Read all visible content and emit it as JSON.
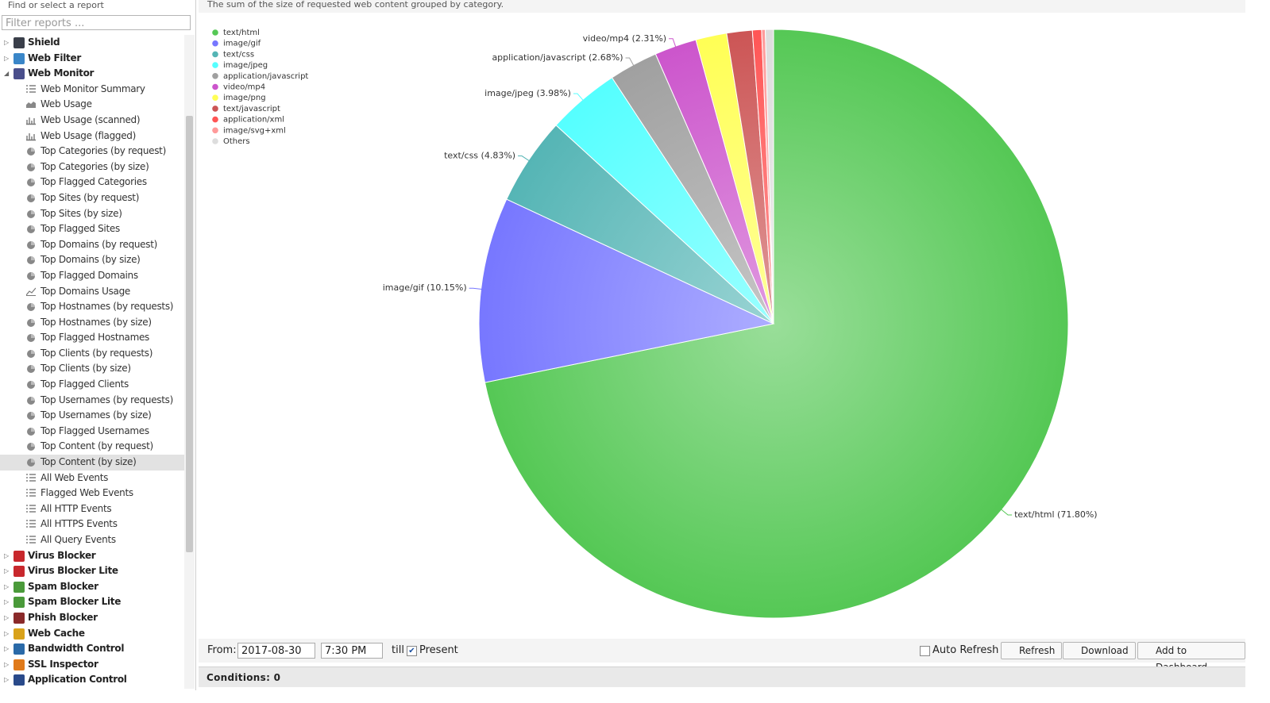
{
  "sidebar": {
    "title": "Find or select a report",
    "filter_placeholder": "Filter reports ...",
    "tree": [
      {
        "label": "Shield",
        "color": "#3a3f4a",
        "expanded": false
      },
      {
        "label": "Web Filter",
        "color": "#3a86c8",
        "expanded": false
      },
      {
        "label": "Web Monitor",
        "color": "#4a4f8c",
        "expanded": true,
        "children": [
          {
            "label": "Web Monitor Summary",
            "icon": "list"
          },
          {
            "label": "Web Usage",
            "icon": "area"
          },
          {
            "label": "Web Usage (scanned)",
            "icon": "bar"
          },
          {
            "label": "Web Usage (flagged)",
            "icon": "bar"
          },
          {
            "label": "Top Categories (by request)",
            "icon": "pie"
          },
          {
            "label": "Top Categories (by size)",
            "icon": "pie"
          },
          {
            "label": "Top Flagged Categories",
            "icon": "pie"
          },
          {
            "label": "Top Sites (by request)",
            "icon": "pie"
          },
          {
            "label": "Top Sites (by size)",
            "icon": "pie"
          },
          {
            "label": "Top Flagged Sites",
            "icon": "pie"
          },
          {
            "label": "Top Domains (by request)",
            "icon": "pie"
          },
          {
            "label": "Top Domains (by size)",
            "icon": "pie"
          },
          {
            "label": "Top Flagged Domains",
            "icon": "pie"
          },
          {
            "label": "Top Domains Usage",
            "icon": "line"
          },
          {
            "label": "Top Hostnames (by requests)",
            "icon": "pie"
          },
          {
            "label": "Top Hostnames (by size)",
            "icon": "pie"
          },
          {
            "label": "Top Flagged Hostnames",
            "icon": "pie"
          },
          {
            "label": "Top Clients (by requests)",
            "icon": "pie"
          },
          {
            "label": "Top Clients (by size)",
            "icon": "pie"
          },
          {
            "label": "Top Flagged Clients",
            "icon": "pie"
          },
          {
            "label": "Top Usernames (by requests)",
            "icon": "pie"
          },
          {
            "label": "Top Usernames (by size)",
            "icon": "pie"
          },
          {
            "label": "Top Flagged Usernames",
            "icon": "pie"
          },
          {
            "label": "Top Content (by request)",
            "icon": "pie"
          },
          {
            "label": "Top Content (by size)",
            "icon": "pie",
            "selected": true
          },
          {
            "label": "All Web Events",
            "icon": "list"
          },
          {
            "label": "Flagged Web Events",
            "icon": "list"
          },
          {
            "label": "All HTTP Events",
            "icon": "list"
          },
          {
            "label": "All HTTPS Events",
            "icon": "list"
          },
          {
            "label": "All Query Events",
            "icon": "list"
          }
        ]
      },
      {
        "label": "Virus Blocker",
        "color": "#c8282d",
        "expanded": false
      },
      {
        "label": "Virus Blocker Lite",
        "color": "#c8282d",
        "expanded": false
      },
      {
        "label": "Spam Blocker",
        "color": "#4a9a3a",
        "expanded": false
      },
      {
        "label": "Spam Blocker Lite",
        "color": "#4a9a3a",
        "expanded": false
      },
      {
        "label": "Phish Blocker",
        "color": "#8a2a2a",
        "expanded": false
      },
      {
        "label": "Web Cache",
        "color": "#d9a21a",
        "expanded": false
      },
      {
        "label": "Bandwidth Control",
        "color": "#2a6aa8",
        "expanded": false
      },
      {
        "label": "SSL Inspector",
        "color": "#e07a1a",
        "expanded": false
      },
      {
        "label": "Application Control",
        "color": "#2a4a8a",
        "expanded": false
      }
    ]
  },
  "chart_data": {
    "type": "pie",
    "subtitle": "The sum of the size of requested web content grouped by category.",
    "categories": [
      "text/html",
      "image/gif",
      "text/css",
      "image/jpeg",
      "application/javascript",
      "video/mp4",
      "image/png",
      "text/javascript",
      "application/xml",
      "image/svg+xml",
      "Others"
    ],
    "values": [
      71.8,
      10.15,
      4.83,
      3.98,
      2.68,
      2.31,
      1.7,
      1.4,
      0.5,
      0.2,
      0.45
    ],
    "value_labels": [
      "text/html (71.80%)",
      "image/gif (10.15%)",
      "text/css (4.83%)",
      "image/jpeg (3.98%)",
      "application/javascript (2.68%)",
      "video/mp4 (2.31%)",
      null,
      null,
      null,
      null,
      null
    ],
    "colors": [
      "#55c855",
      "#7777ff",
      "#55b5b5",
      "#55ffff",
      "#a0a0a0",
      "#cc55cc",
      "#ffff55",
      "#cc5555",
      "#ff5555",
      "#ff9a9a",
      "#dddddd"
    ],
    "legend": "top-left"
  },
  "toolbar": {
    "from_label": "From:",
    "date": "2017-08-30",
    "time": "7:30 PM",
    "till_label": "till",
    "present_label": "Present",
    "present_checked": true,
    "auto_refresh_label": "Auto Refresh",
    "auto_refresh_checked": false,
    "refresh": "Refresh",
    "download": "Download",
    "add_dashboard": "Add to Dashboard"
  },
  "conditions": "Conditions: 0"
}
